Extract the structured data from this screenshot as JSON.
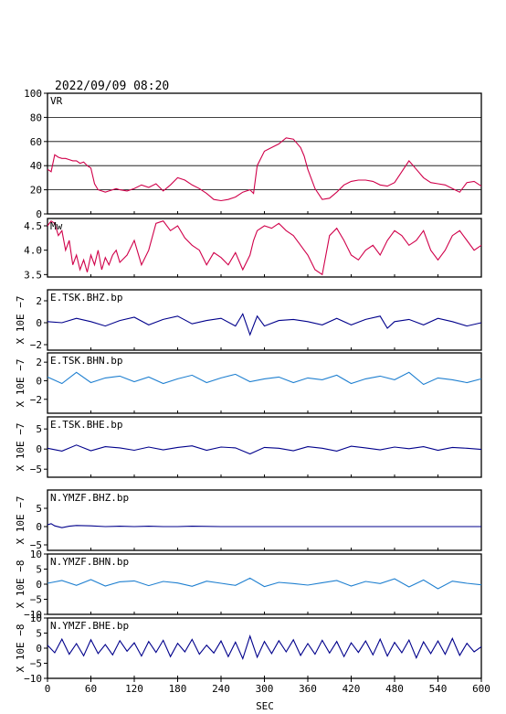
{
  "timestamp": "2022/09/09  08:20",
  "x_axis": {
    "label": "SEC",
    "range": [
      0,
      600
    ],
    "ticks": [
      0,
      60,
      120,
      180,
      240,
      300,
      360,
      420,
      480,
      540,
      600
    ]
  },
  "colors": {
    "vr": "#d0004a",
    "dark_wave": "#00008b",
    "light_wave": "#1e7fd0",
    "frame": "#000000"
  },
  "chart_data": [
    {
      "id": "vr",
      "type": "line",
      "title": "VR",
      "ylim": [
        0,
        100
      ],
      "yticks": [
        "0",
        "20",
        "40",
        "60",
        "80",
        "100"
      ],
      "grid": true,
      "x": [
        0,
        5,
        10,
        15,
        20,
        25,
        30,
        35,
        40,
        45,
        50,
        55,
        60,
        65,
        70,
        75,
        80,
        85,
        90,
        95,
        100,
        110,
        120,
        130,
        140,
        150,
        160,
        170,
        180,
        190,
        200,
        210,
        220,
        230,
        240,
        250,
        260,
        270,
        280,
        285,
        290,
        300,
        310,
        320,
        330,
        340,
        350,
        355,
        360,
        370,
        380,
        390,
        400,
        410,
        420,
        430,
        440,
        450,
        460,
        470,
        480,
        490,
        500,
        510,
        520,
        530,
        540,
        550,
        560,
        570,
        580,
        590,
        600
      ],
      "values": [
        37,
        35,
        49,
        47,
        46,
        46,
        45,
        44,
        44,
        42,
        43,
        40,
        38,
        25,
        20,
        19,
        18,
        19,
        20,
        21,
        20,
        19,
        21,
        24,
        22,
        25,
        19,
        24,
        30,
        28,
        24,
        21,
        17,
        12,
        11,
        12,
        14,
        18,
        20,
        17,
        40,
        52,
        55,
        58,
        63,
        62,
        55,
        48,
        37,
        21,
        12,
        13,
        18,
        24,
        27,
        28,
        28,
        27,
        24,
        23,
        26,
        35,
        44,
        37,
        30,
        26,
        25,
        24,
        21,
        18,
        26,
        27,
        23
      ]
    },
    {
      "id": "mw",
      "type": "line",
      "title": "Mw",
      "ylim": [
        3.45,
        4.65
      ],
      "yticks": [
        "3.5",
        "4.0",
        "4.5"
      ],
      "grid": false,
      "x": [
        0,
        5,
        10,
        15,
        20,
        25,
        30,
        35,
        40,
        45,
        50,
        55,
        60,
        65,
        70,
        75,
        80,
        85,
        90,
        95,
        100,
        110,
        120,
        130,
        140,
        150,
        160,
        170,
        180,
        190,
        200,
        210,
        220,
        230,
        240,
        250,
        260,
        270,
        280,
        285,
        290,
        300,
        310,
        320,
        330,
        340,
        350,
        355,
        360,
        370,
        380,
        390,
        400,
        410,
        420,
        430,
        440,
        450,
        460,
        470,
        480,
        490,
        500,
        510,
        520,
        530,
        540,
        550,
        560,
        570,
        580,
        590,
        600
      ],
      "values": [
        4.5,
        4.6,
        4.55,
        4.3,
        4.4,
        4.0,
        4.2,
        3.7,
        3.9,
        3.6,
        3.8,
        3.55,
        3.9,
        3.7,
        4.0,
        3.6,
        3.85,
        3.7,
        3.9,
        4.0,
        3.75,
        3.9,
        4.2,
        3.7,
        4.0,
        4.55,
        4.6,
        4.4,
        4.5,
        4.25,
        4.1,
        4.0,
        3.7,
        3.95,
        3.85,
        3.7,
        3.95,
        3.6,
        3.9,
        4.2,
        4.4,
        4.5,
        4.45,
        4.55,
        4.4,
        4.3,
        4.1,
        4.0,
        3.9,
        3.6,
        3.5,
        4.3,
        4.45,
        4.2,
        3.9,
        3.8,
        4.0,
        4.1,
        3.9,
        4.2,
        4.4,
        4.3,
        4.1,
        4.2,
        4.4,
        4.0,
        3.8,
        4.0,
        4.3,
        4.4,
        4.2,
        4.0,
        4.1
      ]
    },
    {
      "id": "e-tsk-bhz",
      "type": "line",
      "title": "E.TSK.BHZ.bp",
      "ylabel": "X 10E −7",
      "ylim": [
        -2.5,
        3
      ],
      "yticks": [
        "−2",
        "0",
        "2"
      ],
      "color_key": "dark_wave",
      "grid": false,
      "x": [
        0,
        20,
        40,
        60,
        80,
        100,
        120,
        140,
        160,
        180,
        200,
        220,
        240,
        260,
        270,
        280,
        290,
        300,
        320,
        340,
        360,
        380,
        400,
        420,
        440,
        460,
        470,
        480,
        500,
        520,
        540,
        560,
        580,
        600
      ],
      "values": [
        0.1,
        0.0,
        0.4,
        0.1,
        -0.3,
        0.2,
        0.5,
        -0.2,
        0.3,
        0.6,
        -0.1,
        0.2,
        0.4,
        -0.3,
        0.8,
        -1.1,
        0.6,
        -0.3,
        0.2,
        0.3,
        0.1,
        -0.2,
        0.4,
        -0.2,
        0.3,
        0.6,
        -0.5,
        0.1,
        0.3,
        -0.2,
        0.4,
        0.1,
        -0.3,
        0.0
      ]
    },
    {
      "id": "e-tsk-bhn",
      "type": "line",
      "title": "E.TSK.BHN.bp",
      "ylabel": "X 10E −7",
      "ylim": [
        -3.5,
        3
      ],
      "yticks": [
        "−2",
        "0",
        "2"
      ],
      "color_key": "light_wave",
      "grid": false,
      "x": [
        0,
        20,
        40,
        60,
        80,
        100,
        120,
        140,
        160,
        180,
        200,
        220,
        240,
        260,
        280,
        300,
        320,
        340,
        360,
        380,
        400,
        420,
        440,
        460,
        480,
        500,
        520,
        540,
        560,
        580,
        600
      ],
      "values": [
        0.4,
        -0.3,
        0.9,
        -0.2,
        0.3,
        0.5,
        -0.1,
        0.4,
        -0.3,
        0.2,
        0.6,
        -0.2,
        0.3,
        0.7,
        -0.1,
        0.2,
        0.4,
        -0.2,
        0.3,
        0.1,
        0.6,
        -0.3,
        0.2,
        0.5,
        0.1,
        0.9,
        -0.4,
        0.3,
        0.1,
        -0.2,
        0.2
      ]
    },
    {
      "id": "e-tsk-bhe",
      "type": "line",
      "title": "E.TSK.BHE.bp",
      "ylabel": "X 10E −7",
      "ylim": [
        -7,
        8
      ],
      "yticks": [
        "−5",
        "0",
        "5"
      ],
      "color_key": "dark_wave",
      "grid": false,
      "x": [
        0,
        20,
        40,
        60,
        80,
        100,
        120,
        140,
        160,
        180,
        200,
        220,
        240,
        260,
        280,
        300,
        320,
        340,
        360,
        380,
        400,
        420,
        440,
        460,
        480,
        500,
        520,
        540,
        560,
        580,
        600
      ],
      "values": [
        0.2,
        -0.5,
        1.0,
        -0.4,
        0.6,
        0.3,
        -0.3,
        0.5,
        -0.2,
        0.4,
        0.8,
        -0.3,
        0.5,
        0.3,
        -1.2,
        0.4,
        0.2,
        -0.4,
        0.6,
        0.2,
        -0.5,
        0.7,
        0.3,
        -0.2,
        0.5,
        0.1,
        0.6,
        -0.3,
        0.4,
        0.2,
        -0.1
      ]
    },
    {
      "id": "n-ymzf-bhz",
      "type": "line",
      "title": "N.YMZF.BHZ.bp",
      "ylabel": "X 10E −7",
      "ylim": [
        -6.5,
        10
      ],
      "yticks": [
        "−5",
        "0",
        "5"
      ],
      "color_key": "dark_wave",
      "grid": false,
      "x": [
        0,
        5,
        10,
        20,
        30,
        40,
        60,
        80,
        100,
        120,
        140,
        160,
        180,
        200,
        240,
        280,
        320,
        360,
        400,
        440,
        480,
        520,
        560,
        600
      ],
      "values": [
        0.5,
        0.8,
        0.2,
        -0.3,
        0.1,
        0.3,
        0.2,
        0.0,
        0.1,
        0.0,
        0.1,
        0.0,
        0.0,
        0.1,
        0.0,
        0.0,
        0.0,
        0.0,
        0.0,
        0.0,
        0.0,
        0.0,
        0.0,
        0.0
      ]
    },
    {
      "id": "n-ymzf-bhn",
      "type": "line",
      "title": "N.YMZF.BHN.bp",
      "ylabel": "X 10E −8",
      "ylim": [
        -10,
        10
      ],
      "yticks": [
        "−10",
        "−5",
        "0",
        "5",
        "10"
      ],
      "color_key": "light_wave",
      "grid": false,
      "x": [
        0,
        20,
        40,
        60,
        80,
        100,
        120,
        140,
        160,
        180,
        200,
        220,
        240,
        260,
        280,
        300,
        320,
        340,
        360,
        380,
        400,
        420,
        440,
        460,
        480,
        500,
        520,
        540,
        560,
        580,
        600
      ],
      "values": [
        0.3,
        1.2,
        -0.4,
        1.5,
        -0.6,
        0.8,
        1.1,
        -0.5,
        0.9,
        0.4,
        -0.7,
        1.0,
        0.3,
        -0.4,
        2.0,
        -0.8,
        0.6,
        0.2,
        -0.3,
        0.5,
        1.2,
        -0.6,
        0.9,
        0.2,
        1.8,
        -0.9,
        1.4,
        -1.5,
        1.0,
        0.3,
        -0.2
      ]
    },
    {
      "id": "n-ymzf-bhe",
      "type": "line",
      "title": "N.YMZF.BHE.bp",
      "ylabel": "X 10E −8",
      "ylim": [
        -10,
        10
      ],
      "yticks": [
        "−10",
        "−5",
        "0",
        "5",
        "10"
      ],
      "color_key": "dark_wave",
      "grid": false,
      "x": [
        0,
        10,
        20,
        30,
        40,
        50,
        60,
        70,
        80,
        90,
        100,
        110,
        120,
        130,
        140,
        150,
        160,
        170,
        180,
        190,
        200,
        210,
        220,
        230,
        240,
        250,
        260,
        270,
        280,
        290,
        300,
        310,
        320,
        330,
        340,
        350,
        360,
        370,
        380,
        390,
        400,
        410,
        420,
        430,
        440,
        450,
        460,
        470,
        480,
        490,
        500,
        510,
        520,
        530,
        540,
        550,
        560,
        570,
        580,
        590,
        600
      ],
      "values": [
        1.0,
        -1.5,
        3.0,
        -2.0,
        1.5,
        -2.5,
        2.8,
        -1.8,
        1.2,
        -2.2,
        2.5,
        -1.0,
        1.8,
        -2.6,
        2.2,
        -1.4,
        2.6,
        -2.8,
        1.6,
        -1.2,
        2.9,
        -2.0,
        1.0,
        -1.6,
        2.4,
        -2.8,
        2.0,
        -3.5,
        4.0,
        -3.0,
        2.2,
        -1.8,
        2.5,
        -1.2,
        2.8,
        -2.4,
        1.5,
        -2.0,
        2.6,
        -1.6,
        2.2,
        -2.8,
        1.8,
        -1.4,
        2.4,
        -2.2,
        3.0,
        -2.6,
        1.9,
        -1.5,
        2.7,
        -3.2,
        2.1,
        -1.8,
        2.4,
        -2.0,
        3.2,
        -2.4,
        1.6,
        -1.2,
        0.5
      ]
    }
  ]
}
